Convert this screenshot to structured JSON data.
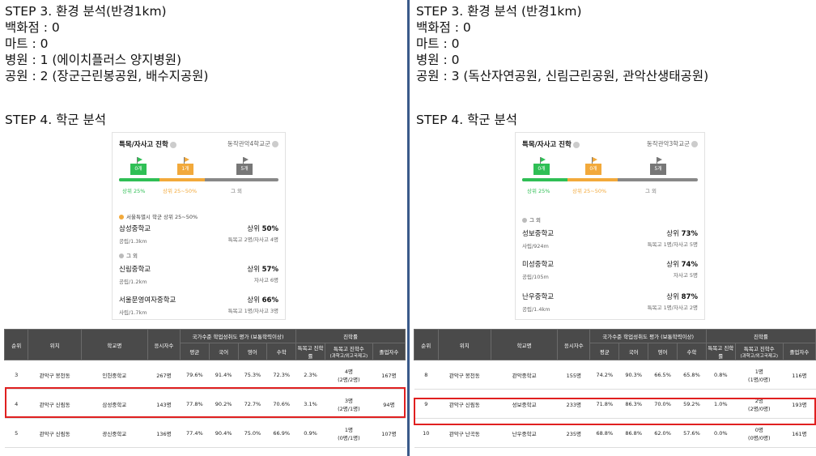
{
  "left": {
    "lines": [
      "STEP 3. 환경 분석(반경1km)",
      "백화점 : 0",
      "마트 : 0",
      "병원 : 1 (에이치플러스 양지병원)",
      "공원 : 2 (장군근린봉공원, 배수지공원)"
    ],
    "step4": "STEP 4. 학군 분석",
    "card": {
      "title": "특목/자사고 진학",
      "district": "동작관악4학교군",
      "flags": [
        "0개",
        "1개",
        "5개"
      ],
      "bar_labels": [
        "상위 25%",
        "상위 25~50%",
        "그 외"
      ],
      "groups": [
        {
          "label": "서울특별시 학군 상위 25~50%",
          "color": "#f2a93b"
        },
        {
          "label": "그 외",
          "color": "#bbbbbb"
        }
      ],
      "schools": [
        {
          "name": "삼성중학교",
          "type": "공립/1.3km",
          "rank_prefix": "상위 ",
          "rank": "50%",
          "detail": "특목고 2명/자사고 4명"
        },
        {
          "name": "신림중학교",
          "type": "공립/1.2km",
          "rank_prefix": "상위 ",
          "rank": "57%",
          "detail": "자사고 6명"
        },
        {
          "name": "서울문영여자중학교",
          "type": "사립/1.7km",
          "rank_prefix": "상위 ",
          "rank": "66%",
          "detail": "특목고 1명/자사고 3명"
        }
      ]
    },
    "table": {
      "h_rank": "순위",
      "h_loc": "위치",
      "h_school": "학교명",
      "h_count": "응시자수",
      "h_eval": "국가수준 학업성취도 평가 (보통학력이상)",
      "h_adv": "진학률",
      "h_avg": "평균",
      "h_kor": "국어",
      "h_eng": "영어",
      "h_math": "수학",
      "h_rate": "특목고 진학률",
      "h_num": "특목고 진학수",
      "h_num_sub": "(과학고/외고국제고)",
      "h_grad": "졸업자수",
      "rows": [
        {
          "rank": "3",
          "loc": "관악구 봉천동",
          "school": "인헌중학교",
          "count": "267명",
          "avg": "79.6%",
          "kor": "91.4%",
          "eng": "75.3%",
          "math": "72.3%",
          "rate": "2.3%",
          "num": "4명",
          "num_sub": "(2명/2명)",
          "grad": "167명"
        },
        {
          "rank": "4",
          "loc": "관악구 신림동",
          "school": "삼성중학교",
          "count": "143명",
          "avg": "77.8%",
          "kor": "90.2%",
          "eng": "72.7%",
          "math": "70.6%",
          "rate": "3.1%",
          "num": "3명",
          "num_sub": "(2명/1명)",
          "grad": "94명"
        },
        {
          "rank": "5",
          "loc": "관악구 신림동",
          "school": "광신중학교",
          "count": "136명",
          "avg": "77.4%",
          "kor": "90.4%",
          "eng": "75.0%",
          "math": "66.9%",
          "rate": "0.9%",
          "num": "1명",
          "num_sub": "(0명/1명)",
          "grad": "107명"
        }
      ]
    }
  },
  "right": {
    "lines": [
      "STEP 3. 환경 분석 (반경1km)",
      "백화점 : 0",
      "마트 : 0",
      "병원 : 0",
      "공원 : 3 (독산자연공원, 신림근린공원, 관악산생태공원)"
    ],
    "step4": "STEP 4. 학군 분석",
    "card": {
      "title": "특목/자사고 진학",
      "district": "동작관악3학교군",
      "flags": [
        "0개",
        "0개",
        "5개"
      ],
      "bar_labels": [
        "상위 25%",
        "상위 25~50%",
        "그 외"
      ],
      "groups": [
        {
          "label": "그 외",
          "color": "#bbbbbb"
        }
      ],
      "schools": [
        {
          "name": "성보중학교",
          "type": "사립/924m",
          "rank_prefix": "상위 ",
          "rank": "73%",
          "detail": "특목고 1명/자사고 5명"
        },
        {
          "name": "미성중학교",
          "type": "공립/105m",
          "rank_prefix": "상위 ",
          "rank": "74%",
          "detail": "자사고 5명"
        },
        {
          "name": "난우중학교",
          "type": "공립/1.4km",
          "rank_prefix": "상위 ",
          "rank": "87%",
          "detail": "특목고 1명/자사고 2명"
        }
      ]
    },
    "table": {
      "h_rank": "순위",
      "h_loc": "위치",
      "h_school": "학교명",
      "h_count": "응시자수",
      "h_eval": "국가수준 학업성취도 평가 (보통학력이상)",
      "h_adv": "진학률",
      "h_avg": "평균",
      "h_kor": "국어",
      "h_eng": "영어",
      "h_math": "수학",
      "h_rate": "특목고 진학률",
      "h_num": "특목고 진학수",
      "h_num_sub": "(과학고/외고국제고)",
      "h_grad": "졸업자수",
      "rows": [
        {
          "rank": "8",
          "loc": "관악구 봉천동",
          "school": "관악중학교",
          "count": "155명",
          "avg": "74.2%",
          "kor": "90.3%",
          "eng": "66.5%",
          "math": "65.8%",
          "rate": "0.8%",
          "num": "1명",
          "num_sub": "(1명/0명)",
          "grad": "116명"
        },
        {
          "rank": "9",
          "loc": "관악구 신림동",
          "school": "성보중학교",
          "count": "233명",
          "avg": "71.8%",
          "kor": "86.3%",
          "eng": "70.0%",
          "math": "59.2%",
          "rate": "1.0%",
          "num": "2명",
          "num_sub": "(2명/0명)",
          "grad": "193명"
        },
        {
          "rank": "10",
          "loc": "관악구 난곡동",
          "school": "난우중학교",
          "count": "235명",
          "avg": "68.8%",
          "kor": "86.8%",
          "eng": "62.0%",
          "math": "57.6%",
          "rate": "0.0%",
          "num": "0명",
          "num_sub": "(0명/0명)",
          "grad": "161명"
        }
      ]
    }
  }
}
